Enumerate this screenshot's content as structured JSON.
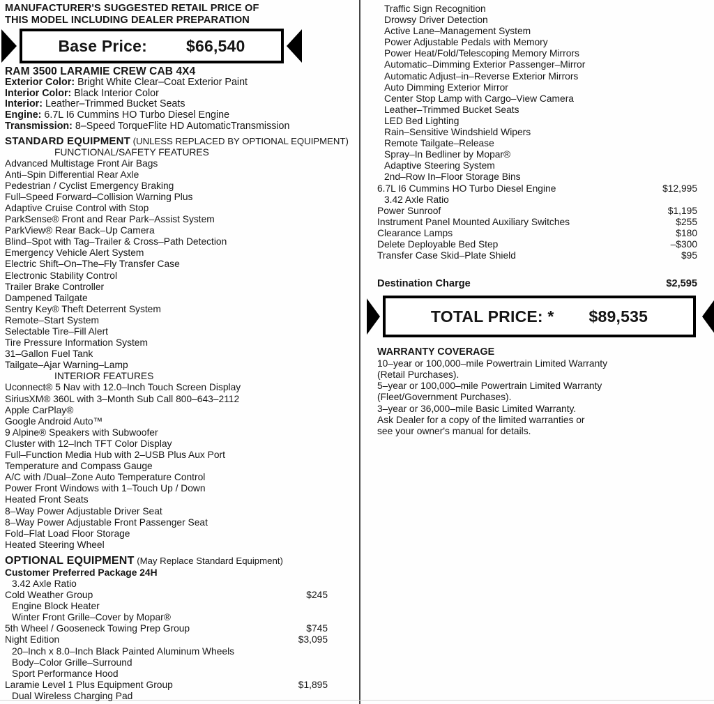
{
  "header": {
    "line1": "MANUFACTURER'S SUGGESTED RETAIL PRICE OF",
    "line2": "THIS MODEL INCLUDING DEALER PREPARATION"
  },
  "base_price": {
    "label": "Base Price:",
    "value": "$66,540"
  },
  "vehicle": {
    "model": "RAM 3500 LARAMIE CREW CAB 4X4",
    "specs": [
      {
        "label": "Exterior Color:",
        "value": " Bright White Clear–Coat Exterior Paint"
      },
      {
        "label": "Interior Color:",
        "value": " Black Interior Color"
      },
      {
        "label": "Interior:",
        "value": " Leather–Trimmed Bucket Seats"
      },
      {
        "label": "Engine:",
        "value": " 6.7L I6 Cummins HO Turbo Diesel Engine"
      },
      {
        "label": "Transmission:",
        "value": " 8–Speed TorqueFlite HD AutomaticTransmission"
      }
    ]
  },
  "standard_equipment": {
    "title": "STANDARD EQUIPMENT",
    "subtitle": " (UNLESS REPLACED BY OPTIONAL EQUIPMENT)",
    "functional_safety": {
      "heading": "FUNCTIONAL/SAFETY FEATURES",
      "items": [
        "Advanced Multistage Front Air Bags",
        "Anti–Spin Differential Rear Axle",
        "Pedestrian / Cyclist Emergency Braking",
        "Full–Speed Forward–Collision Warning Plus",
        "Adaptive Cruise Control with Stop",
        "ParkSense® Front and Rear Park–Assist System",
        "ParkView® Rear Back–Up Camera",
        "Blind–Spot with Tag–Trailer & Cross–Path Detection",
        "Emergency Vehicle Alert System",
        "Electric Shift–On–The–Fly Transfer Case",
        "Electronic Stability Control",
        "Trailer Brake Controller",
        "Dampened Tailgate",
        "Sentry Key® Theft Deterrent System",
        "Remote–Start System",
        "Selectable Tire–Fill Alert",
        "Tire Pressure Information System",
        "31–Gallon Fuel Tank",
        "Tailgate–Ajar Warning–Lamp"
      ]
    },
    "interior": {
      "heading": "INTERIOR FEATURES",
      "items": [
        "Uconnect® 5 Nav with 12.0–Inch Touch Screen Display",
        "SiriusXM® 360L with 3–Month Sub Call 800–643–2112",
        "Apple CarPlay®",
        "Google Android Auto™",
        "9 Alpine® Speakers with Subwoofer",
        "Cluster with 12–Inch TFT Color Display",
        "Full–Function Media Hub with 2–USB Plus Aux Port",
        "Temperature and Compass Gauge",
        "A/C with /Dual–Zone Auto Temperature Control",
        "Power Front Windows with 1–Touch Up / Down",
        "Heated Front Seats",
        "8–Way Power Adjustable Driver Seat",
        "8–Way Power Adjustable Front Passenger Seat",
        "Fold–Flat Load Floor Storage",
        "Heated Steering Wheel"
      ]
    }
  },
  "optional_equipment": {
    "title": "OPTIONAL EQUIPMENT",
    "subtitle": " (May Replace Standard Equipment)",
    "left_rows": [
      {
        "text": "Customer Preferred Package 24H",
        "cls": "bold"
      },
      {
        "text": "3.42 Axle Ratio",
        "cls": "ind"
      },
      {
        "text": "Cold Weather Group",
        "price": "$245"
      },
      {
        "text": "Engine Block Heater",
        "cls": "ind"
      },
      {
        "text": "Winter Front Grille–Cover by Mopar®",
        "cls": "ind"
      },
      {
        "text": "5th Wheel / Gooseneck Towing Prep Group",
        "price": "$745"
      },
      {
        "text": "Night Edition",
        "price": "$3,095"
      },
      {
        "text": "20–Inch x 8.0–Inch Black Painted Aluminum Wheels",
        "cls": "ind"
      },
      {
        "text": "Body–Color Grille–Surround",
        "cls": "ind"
      },
      {
        "text": "Sport Performance Hood",
        "cls": "ind"
      },
      {
        "text": "Laramie Level 1 Plus Equipment Group",
        "price": "$1,895"
      },
      {
        "text": "Dual Wireless Charging Pad",
        "cls": "ind"
      }
    ],
    "right_rows": [
      {
        "text": "Traffic Sign Recognition",
        "cls": "ind"
      },
      {
        "text": "Drowsy Driver Detection",
        "cls": "ind"
      },
      {
        "text": "Active Lane–Management System",
        "cls": "ind"
      },
      {
        "text": "Power Adjustable Pedals with Memory",
        "cls": "ind"
      },
      {
        "text": "Power Heat/Fold/Telescoping Memory Mirrors",
        "cls": "ind"
      },
      {
        "text": "Automatic–Dimming Exterior Passenger–Mirror",
        "cls": "ind"
      },
      {
        "text": "Automatic Adjust–in–Reverse Exterior Mirrors",
        "cls": "ind"
      },
      {
        "text": "Auto Dimming Exterior Mirror",
        "cls": "ind"
      },
      {
        "text": "Center Stop Lamp with Cargo–View Camera",
        "cls": "ind"
      },
      {
        "text": "Leather–Trimmed Bucket Seats",
        "cls": "ind"
      },
      {
        "text": "LED Bed Lighting",
        "cls": "ind"
      },
      {
        "text": "Rain–Sensitive Windshield Wipers",
        "cls": "ind"
      },
      {
        "text": "Remote Tailgate–Release",
        "cls": "ind"
      },
      {
        "text": "Spray–In Bedliner by Mopar®",
        "cls": "ind"
      },
      {
        "text": "Adaptive Steering System",
        "cls": "ind"
      },
      {
        "text": "2nd–Row In–Floor Storage Bins",
        "cls": "ind"
      },
      {
        "text": "6.7L I6 Cummins HO Turbo Diesel Engine",
        "price": "$12,995"
      },
      {
        "text": "3.42 Axle Ratio",
        "cls": "ind"
      },
      {
        "text": "Power Sunroof",
        "price": "$1,195"
      },
      {
        "text": "Instrument Panel Mounted Auxiliary Switches",
        "price": "$255"
      },
      {
        "text": "Clearance Lamps",
        "price": "$180"
      },
      {
        "text": "Delete Deployable Bed Step",
        "price": "–$300"
      },
      {
        "text": "Transfer Case Skid–Plate Shield",
        "price": "$95"
      }
    ]
  },
  "destination_charge": {
    "label": "Destination Charge",
    "value": "$2,595"
  },
  "total_price": {
    "label": "TOTAL PRICE: *",
    "value": "$89,535"
  },
  "warranty": {
    "title": "WARRANTY COVERAGE",
    "lines": [
      "10–year or 100,000–mile Powertrain Limited Warranty",
      "(Retail Purchases).",
      "5–year or 100,000–mile Powertrain Limited Warranty",
      "(Fleet/Government Purchases).",
      "3–year or 36,000–mile Basic Limited Warranty.",
      "Ask Dealer for a copy of the limited warranties or",
      "see your owner's manual for details."
    ]
  }
}
